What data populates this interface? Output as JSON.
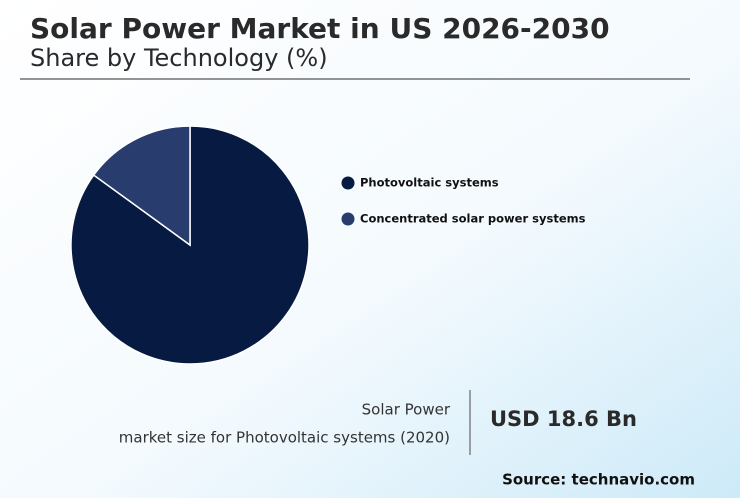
{
  "chart_data": {
    "type": "pie",
    "title": "Solar Power Market in US 2026-2030",
    "subtitle": "Share by Technology (%)",
    "categories": [
      "Photovoltaic systems",
      "Concentrated solar power systems"
    ],
    "values": [
      85,
      15
    ],
    "colors": [
      "#071a42",
      "#283d6e"
    ]
  },
  "callout": {
    "label_lines": [
      "Solar Power",
      "market size for Photovoltaic systems (2020)"
    ],
    "value": "USD 18.6 Bn"
  },
  "source": "Source: technavio.com"
}
